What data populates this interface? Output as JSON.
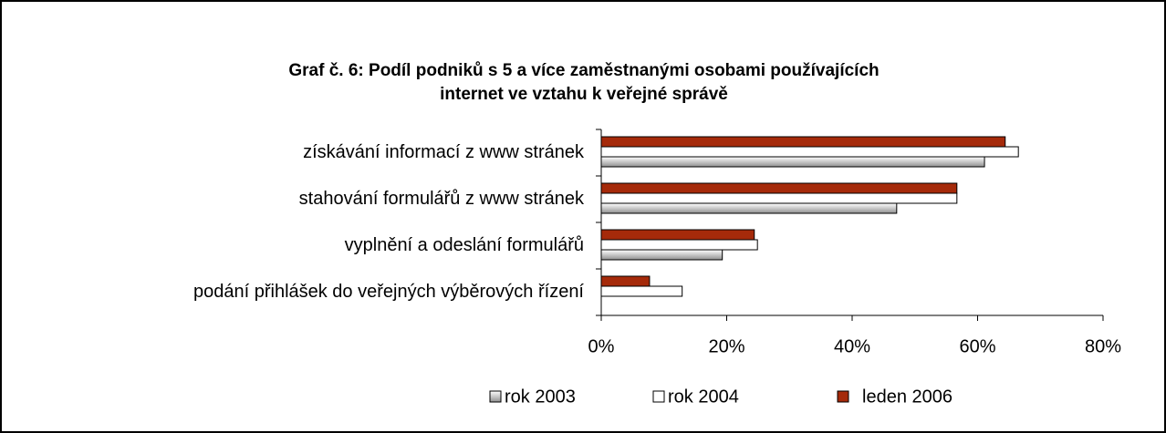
{
  "chart_data": {
    "type": "bar",
    "orientation": "horizontal",
    "title": "Graf č. 6: Podíl podniků s 5 a více zaměstnanými osobami používajících internet ve vztahu k veřejné správě",
    "title_lines": [
      "Graf č. 6: Podíl podniků s 5 a více zaměstnanými osobami používajících",
      "internet ve vztahu k veřejné správě"
    ],
    "categories": [
      "získávání informací z www stránek",
      "stahování formulářů z www stránek",
      "vyplnění a odeslání formulářů",
      "podání přihlášek do veřejných výběrových řízení"
    ],
    "series": [
      {
        "name": "leden 2006",
        "color": "#a52a0a",
        "values": [
          64.4,
          56.7,
          24.4,
          7.7
        ]
      },
      {
        "name": "rok 2004",
        "color": "#ffffff",
        "values": [
          66.5,
          56.7,
          24.9,
          12.9
        ]
      },
      {
        "name": "rok 2003",
        "color": "#c8c8c8",
        "values": [
          61.1,
          47.1,
          19.3,
          null
        ]
      }
    ],
    "legend_order": [
      2,
      1,
      0
    ],
    "xlim": [
      0,
      80
    ],
    "xticks": [
      {
        "value": 0,
        "label": "0%"
      },
      {
        "value": 20,
        "label": "20%"
      },
      {
        "value": 40,
        "label": "40%"
      },
      {
        "value": 60,
        "label": "60%"
      },
      {
        "value": 80,
        "label": "80%"
      }
    ],
    "legend": "bottom"
  }
}
